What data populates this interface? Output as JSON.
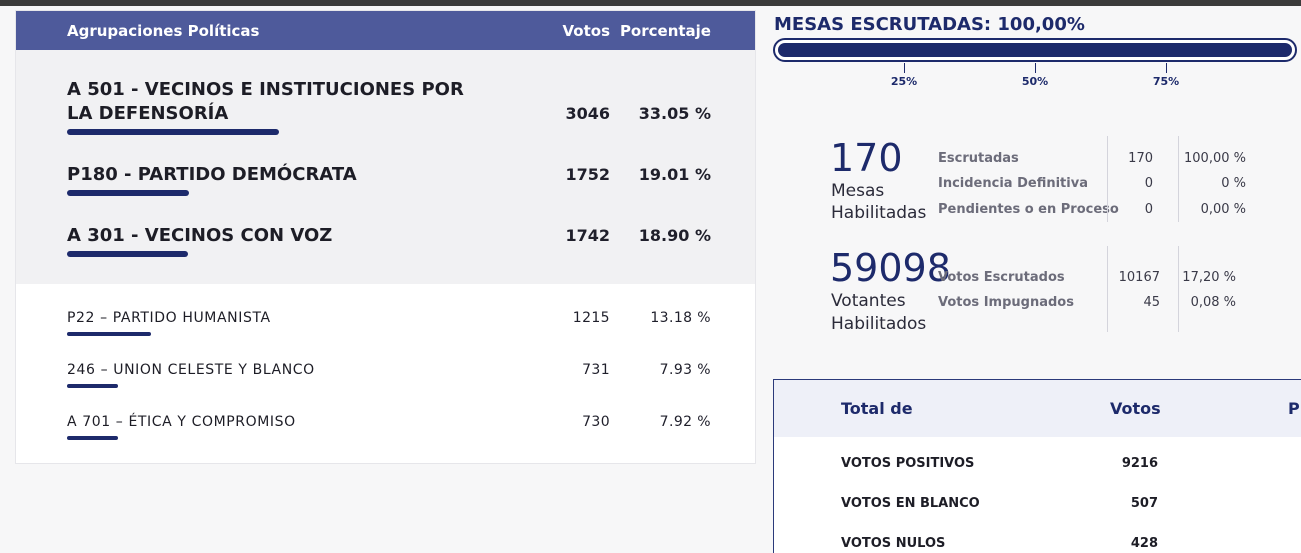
{
  "results": {
    "header": {
      "party": "Agrupaciones Políticas",
      "votes": "Votos",
      "percent": "Porcentaje"
    },
    "top_rows": [
      {
        "name": "A 501 - VECINOS E INSTITUCIONES POR LA DEFENSORÍA",
        "votes": "3046",
        "percent": "33.05 %",
        "share": 0.3305
      },
      {
        "name": "P180 - PARTIDO DEMÓCRATA",
        "votes": "1752",
        "percent": "19.01 %",
        "share": 0.1901
      },
      {
        "name": "A 301 - VECINOS CON VOZ",
        "votes": "1742",
        "percent": "18.90 %",
        "share": 0.189
      }
    ],
    "other_rows": [
      {
        "name": "P22 – PARTIDO HUMANISTA",
        "votes": "1215",
        "percent": "13.18 %",
        "share": 0.1318
      },
      {
        "name": "246 – UNION CELESTE Y BLANCO",
        "votes": "731",
        "percent": "7.93 %",
        "share": 0.0793
      },
      {
        "name": "A 701 – ÉTICA Y COMPROMISO",
        "votes": "730",
        "percent": "7.92 %",
        "share": 0.0792
      }
    ]
  },
  "mesas": {
    "title": "MESAS ESCRUTADAS: 100,00%",
    "progress": 1.0,
    "ticks": [
      "25%",
      "50%",
      "75%"
    ]
  },
  "stats": {
    "mesas_number": "170",
    "mesas_caption_1": "Mesas",
    "mesas_caption_2": "Habilitadas",
    "mesas_rows": [
      {
        "label": "Escrutadas",
        "value": "170",
        "percent": "100,00 %"
      },
      {
        "label": "Incidencia Definitiva",
        "value": "0",
        "percent": "0 %"
      },
      {
        "label": "Pendientes o en Proceso",
        "value": "0",
        "percent": "0,00 %"
      }
    ],
    "votantes_number": "59098",
    "votantes_caption_1": "Votantes",
    "votantes_caption_2": "Habilitados",
    "votantes_rows": [
      {
        "label": "Votos Escrutados",
        "value": "10167",
        "percent": "17,20 %"
      },
      {
        "label": "Votos Impugnados",
        "value": "45",
        "percent": "0,08 %"
      }
    ]
  },
  "totals": {
    "header": {
      "col1": "Total de",
      "col2": "Votos",
      "col3": "P"
    },
    "rows": [
      {
        "name": "VOTOS POSITIVOS",
        "votes": "9216"
      },
      {
        "name": "VOTOS EN BLANCO",
        "votes": "507"
      },
      {
        "name": "VOTOS NULOS",
        "votes": "428"
      }
    ]
  },
  "colors": {
    "accent": "#1d2a6b",
    "header": "#4e5a9b",
    "top_block": "#f1f1f3"
  }
}
